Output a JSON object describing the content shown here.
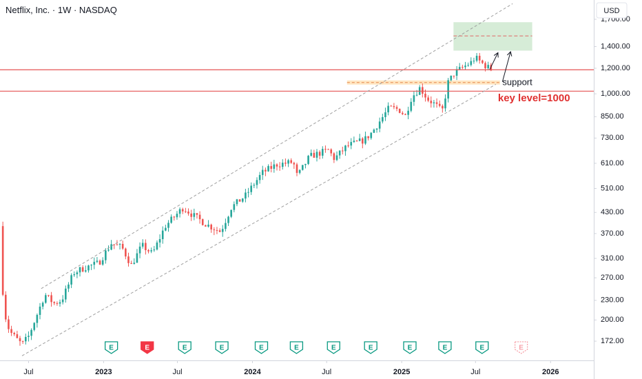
{
  "header": {
    "title": "Netflix, Inc. · 1W · NASDAQ",
    "currency": "USD"
  },
  "colors": {
    "up": "#26a69a",
    "down": "#ef5350",
    "hline": "#e55353",
    "channel": "#9e9e9e",
    "target_zone": "#c8e6c9",
    "support_zone": "#ffe0b2",
    "earnings_green": "#089981",
    "earnings_red": "#f23645"
  },
  "chart_data": {
    "type": "candlestick",
    "title": "Netflix, Inc. · 1W · NASDAQ",
    "y_scale": "log",
    "ylim": [
      150,
      1950
    ],
    "xlim": [
      "2022-04-22",
      "2026-04-17"
    ],
    "y_ticks": [
      {
        "value": 1700,
        "label": "1,700.00"
      },
      {
        "value": 1400,
        "label": "1,400.00"
      },
      {
        "value": 1200,
        "label": "1,200.00"
      },
      {
        "value": 1000,
        "label": "1,000.00"
      },
      {
        "value": 850,
        "label": "850.00"
      },
      {
        "value": 730,
        "label": "730.00"
      },
      {
        "value": 610,
        "label": "610.00"
      },
      {
        "value": 510,
        "label": "510.00"
      },
      {
        "value": 430,
        "label": "430.00"
      },
      {
        "value": 370,
        "label": "370.00"
      },
      {
        "value": 310,
        "label": "310.00"
      },
      {
        "value": 270,
        "label": "270.00"
      },
      {
        "value": 230,
        "label": "230.00"
      },
      {
        "value": 200,
        "label": "200.00"
      },
      {
        "value": 172,
        "label": "172.00"
      }
    ],
    "x_ticks": [
      {
        "date": "2022-07-01",
        "label": "Jul"
      },
      {
        "date": "2023-01-01",
        "label": "2023"
      },
      {
        "date": "2023-07-01",
        "label": "Jul"
      },
      {
        "date": "2024-01-01",
        "label": "2024"
      },
      {
        "date": "2024-07-01",
        "label": "Jul"
      },
      {
        "date": "2025-01-01",
        "label": "2025"
      },
      {
        "date": "2025-07-01",
        "label": "Jul"
      },
      {
        "date": "2026-01-01",
        "label": "2026"
      }
    ],
    "price_path": [
      [
        "2022-04-22",
        390
      ],
      [
        "2022-05-01",
        215
      ],
      [
        "2022-05-15",
        185
      ],
      [
        "2022-06-01",
        175
      ],
      [
        "2022-06-15",
        168
      ],
      [
        "2022-07-01",
        178
      ],
      [
        "2022-07-20",
        205
      ],
      [
        "2022-08-10",
        240
      ],
      [
        "2022-09-01",
        225
      ],
      [
        "2022-09-20",
        230
      ],
      [
        "2022-10-20",
        280
      ],
      [
        "2022-11-15",
        290
      ],
      [
        "2022-12-20",
        300
      ],
      [
        "2023-01-20",
        345
      ],
      [
        "2023-02-15",
        335
      ],
      [
        "2023-03-10",
        295
      ],
      [
        "2023-04-05",
        340
      ],
      [
        "2023-05-01",
        320
      ],
      [
        "2023-06-01",
        390
      ],
      [
        "2023-07-15",
        445
      ],
      [
        "2023-08-10",
        420
      ],
      [
        "2023-09-10",
        395
      ],
      [
        "2023-10-15",
        375
      ],
      [
        "2023-11-10",
        445
      ],
      [
        "2023-12-15",
        485
      ],
      [
        "2024-01-25",
        570
      ],
      [
        "2024-03-01",
        605
      ],
      [
        "2024-04-10",
        615
      ],
      [
        "2024-04-20",
        555
      ],
      [
        "2024-05-20",
        640
      ],
      [
        "2024-07-05",
        670
      ],
      [
        "2024-07-20",
        630
      ],
      [
        "2024-08-20",
        690
      ],
      [
        "2024-10-01",
        720
      ],
      [
        "2024-10-20",
        760
      ],
      [
        "2024-12-01",
        905
      ],
      [
        "2024-12-25",
        895
      ],
      [
        "2025-01-10",
        855
      ],
      [
        "2025-01-25",
        975
      ],
      [
        "2025-02-15",
        1045
      ],
      [
        "2025-03-05",
        965
      ],
      [
        "2025-03-25",
        925
      ],
      [
        "2025-04-10",
        880
      ],
      [
        "2025-04-25",
        1085
      ],
      [
        "2025-05-10",
        1160
      ],
      [
        "2025-06-01",
        1210
      ],
      [
        "2025-06-20",
        1250
      ],
      [
        "2025-06-30",
        1295
      ],
      [
        "2025-07-20",
        1235
      ],
      [
        "2025-08-10",
        1185
      ]
    ],
    "horizontal_lines": [
      1187,
      1019
    ],
    "channel_lines": [
      {
        "start": [
          "2022-08-01",
          250
        ],
        "end": [
          "2025-09-30",
          1900
        ]
      },
      {
        "start": [
          "2022-06-15",
          155
        ],
        "end": [
          "2025-08-20",
          1070
        ]
      }
    ],
    "target_zone": {
      "start": "2025-05-08",
      "end": "2025-11-17",
      "low": 1360,
      "high": 1665,
      "mid": 1510
    },
    "support_zone": {
      "start": "2024-08-20",
      "end": "2025-08-30",
      "low": 1068,
      "high": 1100
    },
    "projection_arrows": [
      {
        "from": [
          "2025-08-05",
          1190
        ],
        "to": [
          "2025-08-25",
          1340
        ]
      },
      {
        "from": [
          "2025-09-05",
          1090
        ],
        "to": [
          "2025-09-25",
          1350
        ]
      }
    ],
    "annotations": [
      {
        "text": "support",
        "date": "2025-09-05",
        "value": 1082
      },
      {
        "text": "key level=1000",
        "date": "2025-08-25",
        "value": 968
      }
    ],
    "earnings": [
      {
        "date": "2023-01-20",
        "label": "E",
        "result": "beat"
      },
      {
        "date": "2023-04-18",
        "label": "E",
        "result": "miss"
      },
      {
        "date": "2023-07-19",
        "label": "E",
        "result": "beat"
      },
      {
        "date": "2023-10-18",
        "label": "E",
        "result": "beat"
      },
      {
        "date": "2024-01-23",
        "label": "E",
        "result": "beat"
      },
      {
        "date": "2024-04-18",
        "label": "E",
        "result": "beat"
      },
      {
        "date": "2024-07-18",
        "label": "E",
        "result": "beat"
      },
      {
        "date": "2024-10-17",
        "label": "E",
        "result": "beat"
      },
      {
        "date": "2025-01-21",
        "label": "E",
        "result": "beat"
      },
      {
        "date": "2025-04-17",
        "label": "E",
        "result": "beat"
      },
      {
        "date": "2025-07-17",
        "label": "E",
        "result": "beat"
      },
      {
        "date": "2025-10-21",
        "label": "E",
        "result": "upcoming"
      }
    ]
  }
}
